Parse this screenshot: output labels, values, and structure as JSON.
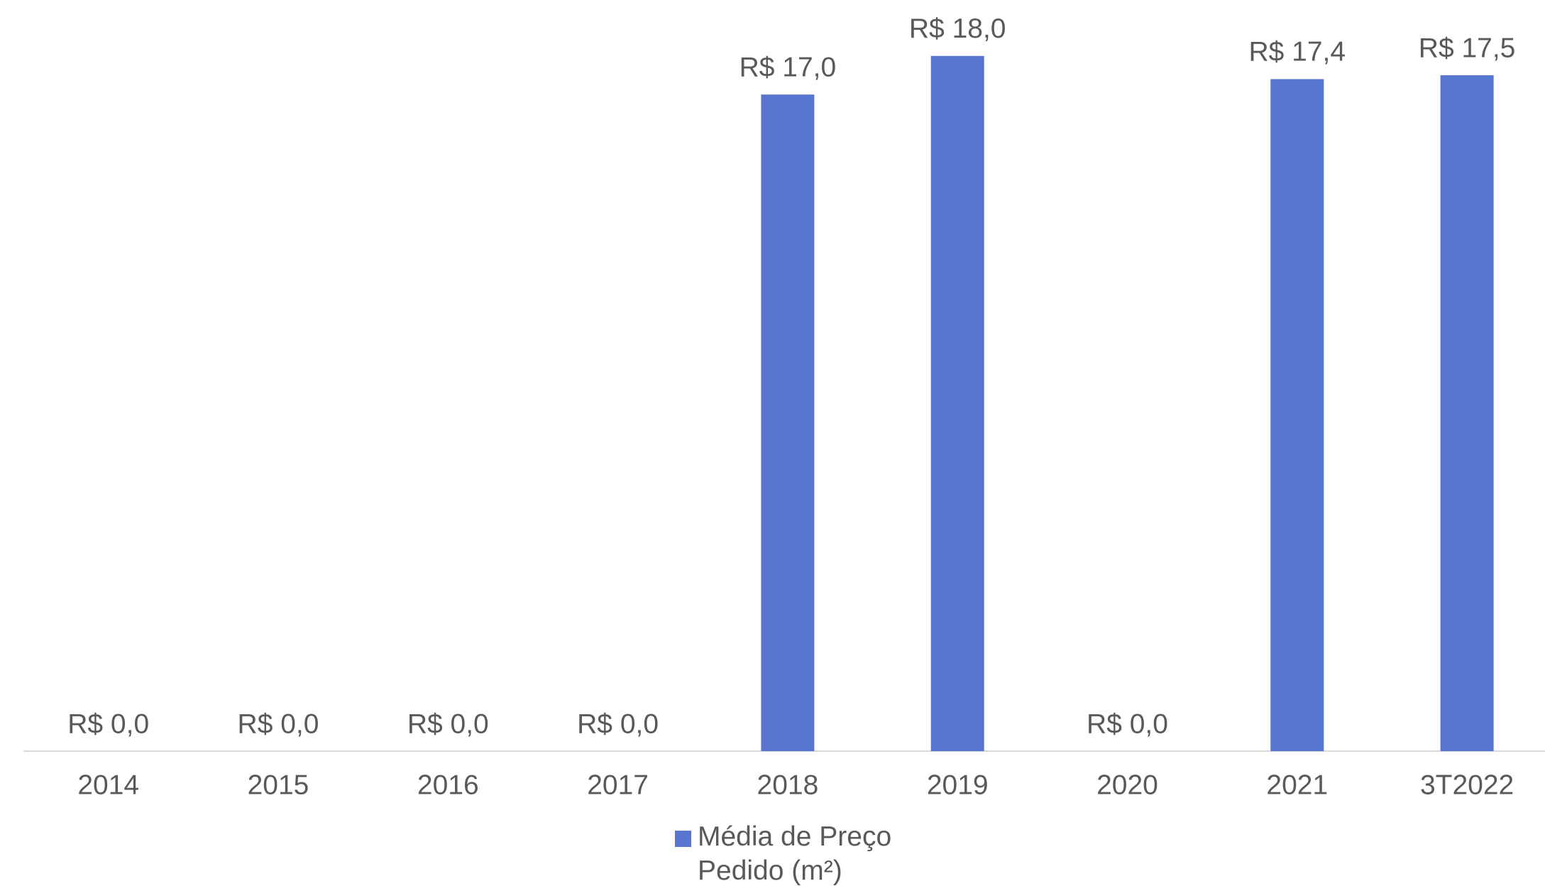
{
  "chart_data": {
    "type": "bar",
    "categories": [
      "2014",
      "2015",
      "2016",
      "2017",
      "2018",
      "2019",
      "2020",
      "2021",
      "3T2022"
    ],
    "series": [
      {
        "name": "Média de Preço Pedido (m²)",
        "color": "#5876d0",
        "values": [
          0,
          0,
          0,
          0,
          17.0,
          18.0,
          0,
          17.4,
          17.5
        ],
        "value_labels": [
          "R$ 0,0",
          "R$ 0,0",
          "R$ 0,0",
          "R$ 0,0",
          "R$ 17,0",
          "R$ 18,0",
          "R$ 0,0",
          "R$ 17,4",
          "R$ 17,5"
        ]
      }
    ]
  }
}
